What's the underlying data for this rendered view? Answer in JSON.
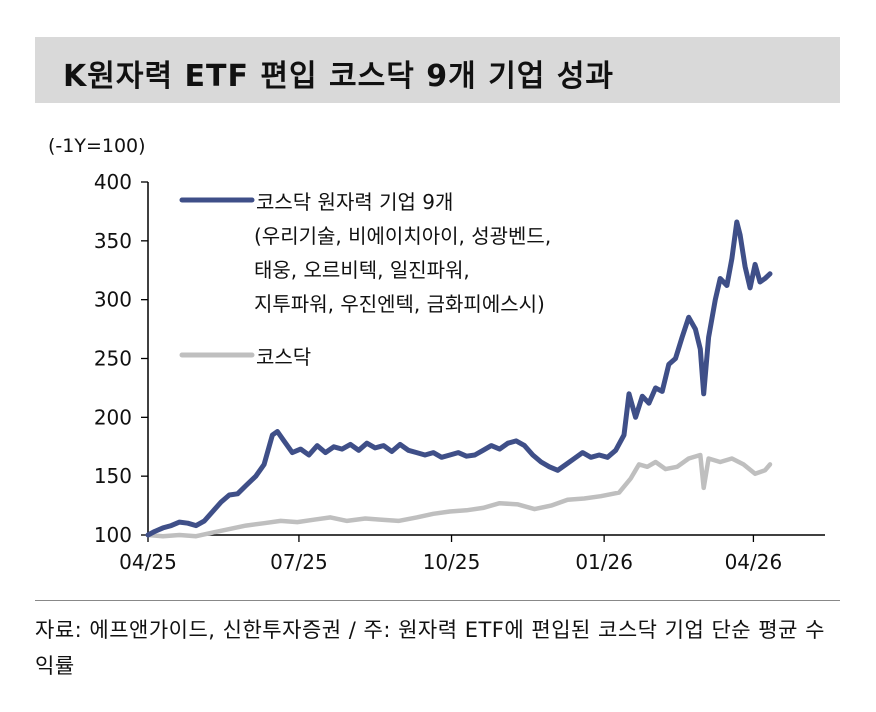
{
  "title": "K원자력 ETF 편입 코스닥 9개 기업 성과",
  "footnote": "자료: 에프앤가이드, 신한투자증권 / 주: 원자력 ETF에 편입된 코스닥 기업 단순 평균 수익률",
  "chart_data": {
    "type": "line",
    "unit_label": "(-1Y=100)",
    "ylim": [
      100,
      400
    ],
    "yticks": [
      100,
      150,
      200,
      250,
      300,
      350,
      400
    ],
    "x_ticks": [
      {
        "label": "04/25",
        "x": "2025-04"
      },
      {
        "label": "07/25",
        "x": "2025-07"
      },
      {
        "label": "10/25",
        "x": "2025-10"
      },
      {
        "label": "01/26",
        "x": "2026-01"
      },
      {
        "label": "04/26",
        "x": "2026-04"
      }
    ],
    "grid": false,
    "legend_position": "top-left",
    "colors": {
      "nuclear9": "#3f4f88",
      "kosdaq": "#bfbfbf"
    },
    "series": [
      {
        "name": "코스닥 원자력 기업 9개",
        "legend_lines": [
          "코스닥 원자력 기업 9개",
          "(우리기술, 비에이치아이, 성광벤드,",
          "태웅, 오르비텍, 일진파워,",
          "지투파워, 우진엔텍, 금화피에스시)"
        ],
        "color": "#3f4f88",
        "points": [
          [
            "2025-04-01",
            100
          ],
          [
            "2025-04-05",
            103
          ],
          [
            "2025-04-10",
            106
          ],
          [
            "2025-04-15",
            108
          ],
          [
            "2025-04-20",
            111
          ],
          [
            "2025-04-25",
            110
          ],
          [
            "2025-04-30",
            108
          ],
          [
            "2025-05-05",
            112
          ],
          [
            "2025-05-10",
            120
          ],
          [
            "2025-05-15",
            128
          ],
          [
            "2025-05-20",
            134
          ],
          [
            "2025-05-25",
            135
          ],
          [
            "2025-05-30",
            142
          ],
          [
            "2025-06-05",
            150
          ],
          [
            "2025-06-10",
            160
          ],
          [
            "2025-06-15",
            185
          ],
          [
            "2025-06-18",
            188
          ],
          [
            "2025-06-22",
            180
          ],
          [
            "2025-06-27",
            170
          ],
          [
            "2025-07-02",
            173
          ],
          [
            "2025-07-07",
            168
          ],
          [
            "2025-07-12",
            176
          ],
          [
            "2025-07-17",
            170
          ],
          [
            "2025-07-22",
            175
          ],
          [
            "2025-07-27",
            173
          ],
          [
            "2025-08-01",
            177
          ],
          [
            "2025-08-06",
            172
          ],
          [
            "2025-08-11",
            178
          ],
          [
            "2025-08-16",
            174
          ],
          [
            "2025-08-21",
            176
          ],
          [
            "2025-08-26",
            171
          ],
          [
            "2025-08-31",
            177
          ],
          [
            "2025-09-05",
            172
          ],
          [
            "2025-09-10",
            170
          ],
          [
            "2025-09-15",
            168
          ],
          [
            "2025-09-20",
            170
          ],
          [
            "2025-09-25",
            166
          ],
          [
            "2025-09-30",
            168
          ],
          [
            "2025-10-05",
            170
          ],
          [
            "2025-10-10",
            167
          ],
          [
            "2025-10-15",
            168
          ],
          [
            "2025-10-20",
            172
          ],
          [
            "2025-10-25",
            176
          ],
          [
            "2025-10-30",
            173
          ],
          [
            "2025-11-04",
            178
          ],
          [
            "2025-11-09",
            180
          ],
          [
            "2025-11-14",
            176
          ],
          [
            "2025-11-19",
            168
          ],
          [
            "2025-11-24",
            162
          ],
          [
            "2025-11-29",
            158
          ],
          [
            "2025-12-04",
            155
          ],
          [
            "2025-12-09",
            160
          ],
          [
            "2025-12-14",
            165
          ],
          [
            "2025-12-19",
            170
          ],
          [
            "2025-12-24",
            166
          ],
          [
            "2025-12-29",
            168
          ],
          [
            "2026-01-03",
            166
          ],
          [
            "2026-01-08",
            172
          ],
          [
            "2026-01-13",
            185
          ],
          [
            "2026-01-16",
            220
          ],
          [
            "2026-01-20",
            200
          ],
          [
            "2026-01-24",
            218
          ],
          [
            "2026-01-28",
            212
          ],
          [
            "2026-02-01",
            225
          ],
          [
            "2026-02-05",
            222
          ],
          [
            "2026-02-09",
            245
          ],
          [
            "2026-02-13",
            250
          ],
          [
            "2026-02-17",
            268
          ],
          [
            "2026-02-21",
            285
          ],
          [
            "2026-02-25",
            275
          ],
          [
            "2026-02-28",
            258
          ],
          [
            "2026-03-02",
            220
          ],
          [
            "2026-03-05",
            268
          ],
          [
            "2026-03-09",
            300
          ],
          [
            "2026-03-12",
            318
          ],
          [
            "2026-03-16",
            312
          ],
          [
            "2026-03-19",
            335
          ],
          [
            "2026-03-22",
            366
          ],
          [
            "2026-03-24",
            355
          ],
          [
            "2026-03-27",
            328
          ],
          [
            "2026-03-30",
            310
          ],
          [
            "2026-04-02",
            330
          ],
          [
            "2026-04-05",
            315
          ],
          [
            "2026-04-08",
            318
          ],
          [
            "2026-04-11",
            322
          ]
        ]
      },
      {
        "name": "코스닥",
        "legend_lines": [
          "코스닥"
        ],
        "color": "#bfbfbf",
        "points": [
          [
            "2025-04-01",
            100
          ],
          [
            "2025-04-10",
            99
          ],
          [
            "2025-04-20",
            100
          ],
          [
            "2025-04-30",
            99
          ],
          [
            "2025-05-10",
            102
          ],
          [
            "2025-05-20",
            105
          ],
          [
            "2025-05-30",
            108
          ],
          [
            "2025-06-10",
            110
          ],
          [
            "2025-06-20",
            112
          ],
          [
            "2025-06-30",
            111
          ],
          [
            "2025-07-10",
            113
          ],
          [
            "2025-07-20",
            115
          ],
          [
            "2025-07-30",
            112
          ],
          [
            "2025-08-10",
            114
          ],
          [
            "2025-08-20",
            113
          ],
          [
            "2025-08-30",
            112
          ],
          [
            "2025-09-10",
            115
          ],
          [
            "2025-09-20",
            118
          ],
          [
            "2025-09-30",
            120
          ],
          [
            "2025-10-10",
            121
          ],
          [
            "2025-10-20",
            123
          ],
          [
            "2025-10-30",
            127
          ],
          [
            "2025-11-10",
            126
          ],
          [
            "2025-11-20",
            122
          ],
          [
            "2025-11-30",
            125
          ],
          [
            "2025-12-10",
            130
          ],
          [
            "2025-12-20",
            131
          ],
          [
            "2025-12-30",
            133
          ],
          [
            "2026-01-10",
            136
          ],
          [
            "2026-01-17",
            148
          ],
          [
            "2026-01-22",
            160
          ],
          [
            "2026-01-27",
            158
          ],
          [
            "2026-02-01",
            162
          ],
          [
            "2026-02-07",
            156
          ],
          [
            "2026-02-14",
            158
          ],
          [
            "2026-02-21",
            165
          ],
          [
            "2026-02-28",
            168
          ],
          [
            "2026-03-02",
            140
          ],
          [
            "2026-03-05",
            165
          ],
          [
            "2026-03-12",
            162
          ],
          [
            "2026-03-19",
            165
          ],
          [
            "2026-03-26",
            160
          ],
          [
            "2026-04-02",
            152
          ],
          [
            "2026-04-08",
            155
          ],
          [
            "2026-04-11",
            160
          ]
        ]
      }
    ]
  }
}
